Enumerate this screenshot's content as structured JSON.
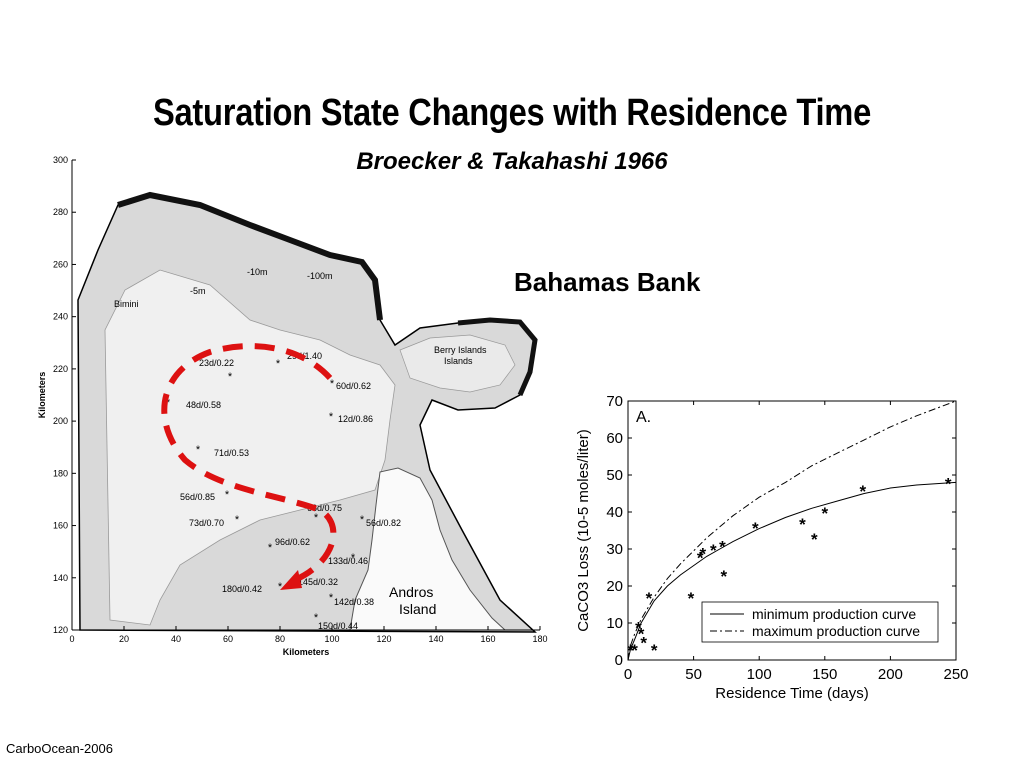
{
  "slide": {
    "title": "Saturation State Changes with Residence Time",
    "subtitle": "Broecker & Takahashi 1966",
    "region_label": "Bahamas Bank",
    "footer": "CarboOcean-2006"
  },
  "map": {
    "xlabel": "Kilometers",
    "ylabel": "Kilometers",
    "x_ticks": [
      "0",
      "20",
      "40",
      "60",
      "80",
      "100",
      "120",
      "140",
      "160",
      "180"
    ],
    "y_ticks": [
      "120",
      "140",
      "160",
      "180",
      "200",
      "220",
      "240",
      "260",
      "280",
      "300"
    ],
    "places": [
      "Bimini",
      "Berry Islands",
      "Andros",
      "Island"
    ],
    "contours": [
      "-10m",
      "-100m",
      "-5m"
    ],
    "stations": [
      "23d/0.22",
      "29d/1.40",
      "48d/0.58",
      "60d/0.62",
      "12d/0.86",
      "71d/0.53",
      "56d/0.85",
      "66d/0.75",
      "73d/0.70",
      "56d/0.82",
      "96d/0.62",
      "133d/0.46",
      "180d/0.42",
      "145d/0.32",
      "142d/0.38",
      "150d/0.44"
    ]
  },
  "chart_data": {
    "type": "scatter",
    "panel_label": "A.",
    "xlabel": "Residence Time (days)",
    "ylabel": "CaCO3 Loss (10-5 moles/liter)",
    "xlim": [
      0,
      250
    ],
    "ylim": [
      0,
      70
    ],
    "x_ticks": [
      0,
      50,
      100,
      150,
      200,
      250
    ],
    "y_ticks": [
      0,
      10,
      20,
      30,
      40,
      50,
      60,
      70
    ],
    "legend_position": "bottom-right",
    "series": [
      {
        "name": "minimum production curve",
        "style": "solid",
        "x": [
          0,
          2,
          5,
          10,
          20,
          30,
          40,
          50,
          60,
          70,
          80,
          100,
          120,
          140,
          160,
          180,
          200,
          220,
          250
        ],
        "y": [
          0,
          3,
          5.5,
          10,
          16,
          20,
          23,
          25.5,
          28,
          30,
          32,
          35.5,
          38.5,
          41,
          43,
          45,
          46.5,
          47.3,
          48
        ]
      },
      {
        "name": "maximum production curve",
        "style": "dashdot",
        "x": [
          0,
          2,
          5,
          10,
          20,
          30,
          40,
          50,
          60,
          70,
          80,
          100,
          120,
          140,
          160,
          180,
          200,
          220,
          250
        ],
        "y": [
          0,
          4,
          7,
          11,
          17,
          22,
          26,
          29.5,
          33,
          36,
          39,
          44,
          48,
          52.5,
          56,
          59.5,
          63,
          66,
          70
        ]
      }
    ],
    "observations": {
      "x": [
        2,
        5,
        8,
        10,
        12,
        16,
        20,
        48,
        55,
        57,
        65,
        72,
        73,
        97,
        133,
        142,
        150,
        179,
        244
      ],
      "y": [
        3,
        3,
        9,
        7.5,
        5,
        17,
        3,
        17,
        28,
        29,
        30,
        31,
        23,
        36,
        37,
        33,
        40,
        46,
        48
      ]
    }
  }
}
